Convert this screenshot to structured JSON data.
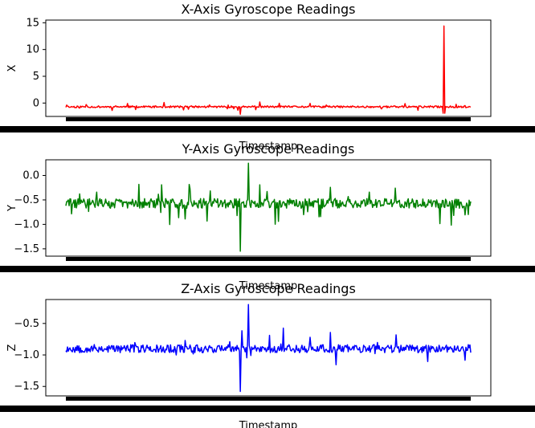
{
  "chart_data": [
    {
      "type": "line",
      "title": "X-Axis Gyroscope Readings",
      "xlabel": "Timestamp",
      "ylabel": "X",
      "ylim": [
        -2.5,
        15.5
      ],
      "yticks": [
        0,
        5,
        10,
        15
      ],
      "ytick_labels": [
        "0",
        "5",
        "10",
        "15"
      ],
      "grid": false,
      "series": [
        {
          "color": "#ff0000",
          "n_points": 500,
          "baseline": -0.7,
          "spread": 0.35,
          "spike_index": 466,
          "spike_value": 14.4,
          "spike_dip": -1.9,
          "min_value": -2.1
        }
      ]
    },
    {
      "type": "line",
      "title": "Y-Axis Gyroscope Readings",
      "xlabel": "Timestamp",
      "ylabel": "Y",
      "ylim": [
        -1.65,
        0.32
      ],
      "yticks": [
        0.0,
        -0.5,
        -1.0,
        -1.5
      ],
      "ytick_labels": [
        "0.0",
        "−0.5",
        "−1.0",
        "−1.5"
      ],
      "grid": false,
      "series": [
        {
          "color": "#008000",
          "n_points": 500,
          "baseline": -0.57,
          "spread": 0.2,
          "max_value": 0.25,
          "min_value": -1.55
        }
      ]
    },
    {
      "type": "line",
      "title": "Z-Axis Gyroscope Readings",
      "xlabel": "Timestamp",
      "ylabel": "Z",
      "ylim": [
        -1.65,
        -0.12
      ],
      "yticks": [
        -0.5,
        -1.0,
        -1.5
      ],
      "ytick_labels": [
        "−0.5",
        "−1.0",
        "−1.5"
      ],
      "grid": false,
      "series": [
        {
          "color": "#0000ff",
          "n_points": 500,
          "baseline": -0.9,
          "spread": 0.13,
          "max_value": -0.2,
          "min_value": -1.58
        }
      ]
    }
  ]
}
